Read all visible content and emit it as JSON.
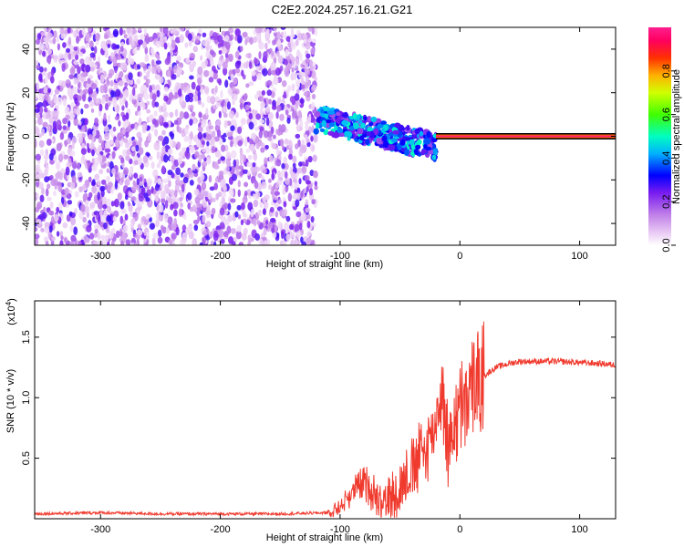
{
  "title": "C2E2.2024.257.16.21.G21",
  "chart_data": [
    {
      "type": "heatmap",
      "xlabel": "Height of straight line (km)",
      "ylabel": "Frequency (Hz)",
      "xlim": [
        -355,
        130
      ],
      "ylim": [
        -50,
        50
      ],
      "xticks": [
        -300,
        -200,
        -100,
        0,
        100
      ],
      "yticks": [
        -40,
        -20,
        0,
        20,
        40
      ],
      "colorbar": {
        "label": "Normalized spectral amplitude",
        "range": [
          0,
          1
        ],
        "ticks": [
          0.0,
          0.2,
          0.4,
          0.6,
          0.8
        ],
        "tick_labels": [
          "0.0",
          "0.2",
          "0.4",
          "0.6",
          "0.8"
        ],
        "colors": [
          "#ffffff",
          "#e8c8f4",
          "#c080e8",
          "#7a1cf0",
          "#0000ff",
          "#00b0ff",
          "#00ffc0",
          "#40ff00",
          "#d0ff00",
          "#ffb000",
          "#ff3000",
          "#ff0060",
          "#ff1f8f"
        ]
      },
      "regions": [
        {
          "x": [
            -355,
            -120
          ],
          "f": [
            -50,
            50
          ],
          "amplitude": [
            0.05,
            0.3
          ],
          "pattern": "broadband noise"
        },
        {
          "x": [
            -120,
            -20
          ],
          "f": [
            -15,
            12
          ],
          "amplitude": [
            0.2,
            0.5
          ],
          "pattern": "scattered blobs drifting from +8 Hz to -10 Hz"
        },
        {
          "x": [
            -20,
            130
          ],
          "f": [
            -1,
            1
          ],
          "amplitude": [
            0.8,
            1.0
          ],
          "pattern": "narrow carrier line near 0 Hz"
        }
      ]
    },
    {
      "type": "line",
      "xlabel": "Height of straight line (km)",
      "ylabel": "SNR (10 * v/v)",
      "y_multiplier": "(x10^4)",
      "xlim": [
        -355,
        130
      ],
      "ylim": [
        0,
        1.8
      ],
      "xticks": [
        -300,
        -200,
        -100,
        0,
        100
      ],
      "yticks": [
        0.5,
        1.0,
        1.5
      ],
      "ytick_labels": [
        "0.5",
        "1.0",
        "1.5"
      ],
      "color": "#f03a2e",
      "series": [
        {
          "x": [
            -355,
            -300,
            -250,
            -200,
            -150,
            -110,
            -100,
            -90,
            -80,
            -70,
            -60,
            -50,
            -40,
            -30,
            -20,
            -15,
            -10,
            0,
            10,
            20,
            30,
            40,
            50,
            60,
            80,
            100,
            120,
            130
          ],
          "y": [
            0.04,
            0.05,
            0.04,
            0.04,
            0.04,
            0.05,
            0.1,
            0.22,
            0.3,
            0.2,
            0.15,
            0.25,
            0.4,
            0.55,
            0.8,
            1.1,
            0.6,
            0.9,
            1.05,
            1.18,
            1.25,
            1.28,
            1.3,
            1.3,
            1.3,
            1.29,
            1.28,
            1.27
          ]
        }
      ]
    }
  ]
}
